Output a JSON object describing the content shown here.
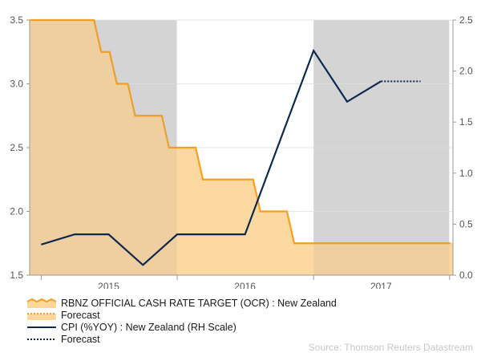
{
  "chart_data": {
    "type": "area+line",
    "title": "",
    "left_axis": {
      "ylim": [
        1.5,
        3.5
      ],
      "ticks": [
        "1.5",
        "2.0",
        "2.5",
        "3.0",
        "3.5"
      ]
    },
    "right_axis": {
      "ylim": [
        0.0,
        2.5
      ],
      "ticks": [
        "0.0",
        "0.5",
        "1.0",
        "1.5",
        "2.0",
        "2.5"
      ]
    },
    "x_axis": {
      "range": [
        "2014-12-01",
        "2017-12-31"
      ],
      "year_labels": [
        {
          "label": "2015",
          "at": "2015-07-01"
        },
        {
          "label": "2016",
          "at": "2016-07-01"
        },
        {
          "label": "2017",
          "at": "2017-07-01"
        }
      ],
      "tick_dates": [
        "2015-01-01",
        "2016-01-01",
        "2017-01-01",
        "2018-01-01"
      ]
    },
    "shaded_periods": [
      {
        "start": "2014-12-01",
        "end": "2015-12-31"
      },
      {
        "start": "2017-01-01",
        "end": "2017-12-31"
      }
    ],
    "series": [
      {
        "name": "RBNZ OFFICIAL CASH RATE TARGET (OCR) : New Zealand",
        "axis": "left",
        "style": "step-area",
        "color": "#F7A01D",
        "fill": "#FDD69A",
        "points": [
          [
            "2014-12-01",
            3.5
          ],
          [
            "2015-06-11",
            3.25
          ],
          [
            "2015-07-23",
            3.0
          ],
          [
            "2015-09-10",
            2.75
          ],
          [
            "2015-12-10",
            2.5
          ],
          [
            "2016-03-10",
            2.25
          ],
          [
            "2016-08-11",
            2.0
          ],
          [
            "2016-11-10",
            1.75
          ],
          [
            "2017-12-31",
            1.75
          ]
        ]
      },
      {
        "name": "Forecast",
        "axis": "left",
        "style": "dotted-area",
        "color": "#F7A01D",
        "points": [
          [
            "2017-12-31",
            1.75
          ],
          [
            "2018-01-10",
            1.75
          ]
        ]
      },
      {
        "name": "CPI (%YOY) : New Zealand (RH Scale)",
        "axis": "right",
        "style": "line",
        "color": "#0D2A4E",
        "points": [
          [
            "2015-01-01",
            0.3
          ],
          [
            "2015-04-01",
            0.4
          ],
          [
            "2015-07-01",
            0.4
          ],
          [
            "2015-10-01",
            0.1
          ],
          [
            "2016-01-01",
            0.4
          ],
          [
            "2016-04-01",
            0.4
          ],
          [
            "2016-07-01",
            0.4
          ],
          [
            "2016-10-01",
            1.3
          ],
          [
            "2017-01-01",
            2.2
          ],
          [
            "2017-04-01",
            1.7
          ],
          [
            "2017-07-01",
            1.9
          ]
        ]
      },
      {
        "name": "Forecast",
        "axis": "right",
        "style": "dotted-line",
        "color": "#0D2A4E",
        "points": [
          [
            "2017-07-01",
            1.9
          ],
          [
            "2017-10-15",
            1.9
          ]
        ]
      }
    ]
  },
  "legend": {
    "items": [
      {
        "label": "RBNZ OFFICIAL CASH RATE TARGET (OCR) : New Zealand",
        "kind": "ocr-area"
      },
      {
        "label": "Forecast",
        "kind": "ocr-forecast"
      },
      {
        "label": "CPI (%YOY) : New Zealand (RH Scale)",
        "kind": "cpi-line"
      },
      {
        "label": "Forecast",
        "kind": "cpi-forecast"
      }
    ]
  },
  "source": "Source: Thomson Reuters Datastream",
  "colors": {
    "shade": "#DCDCDC",
    "grid": "#E6E6E6",
    "axis": "#999999",
    "text": "#555555"
  }
}
